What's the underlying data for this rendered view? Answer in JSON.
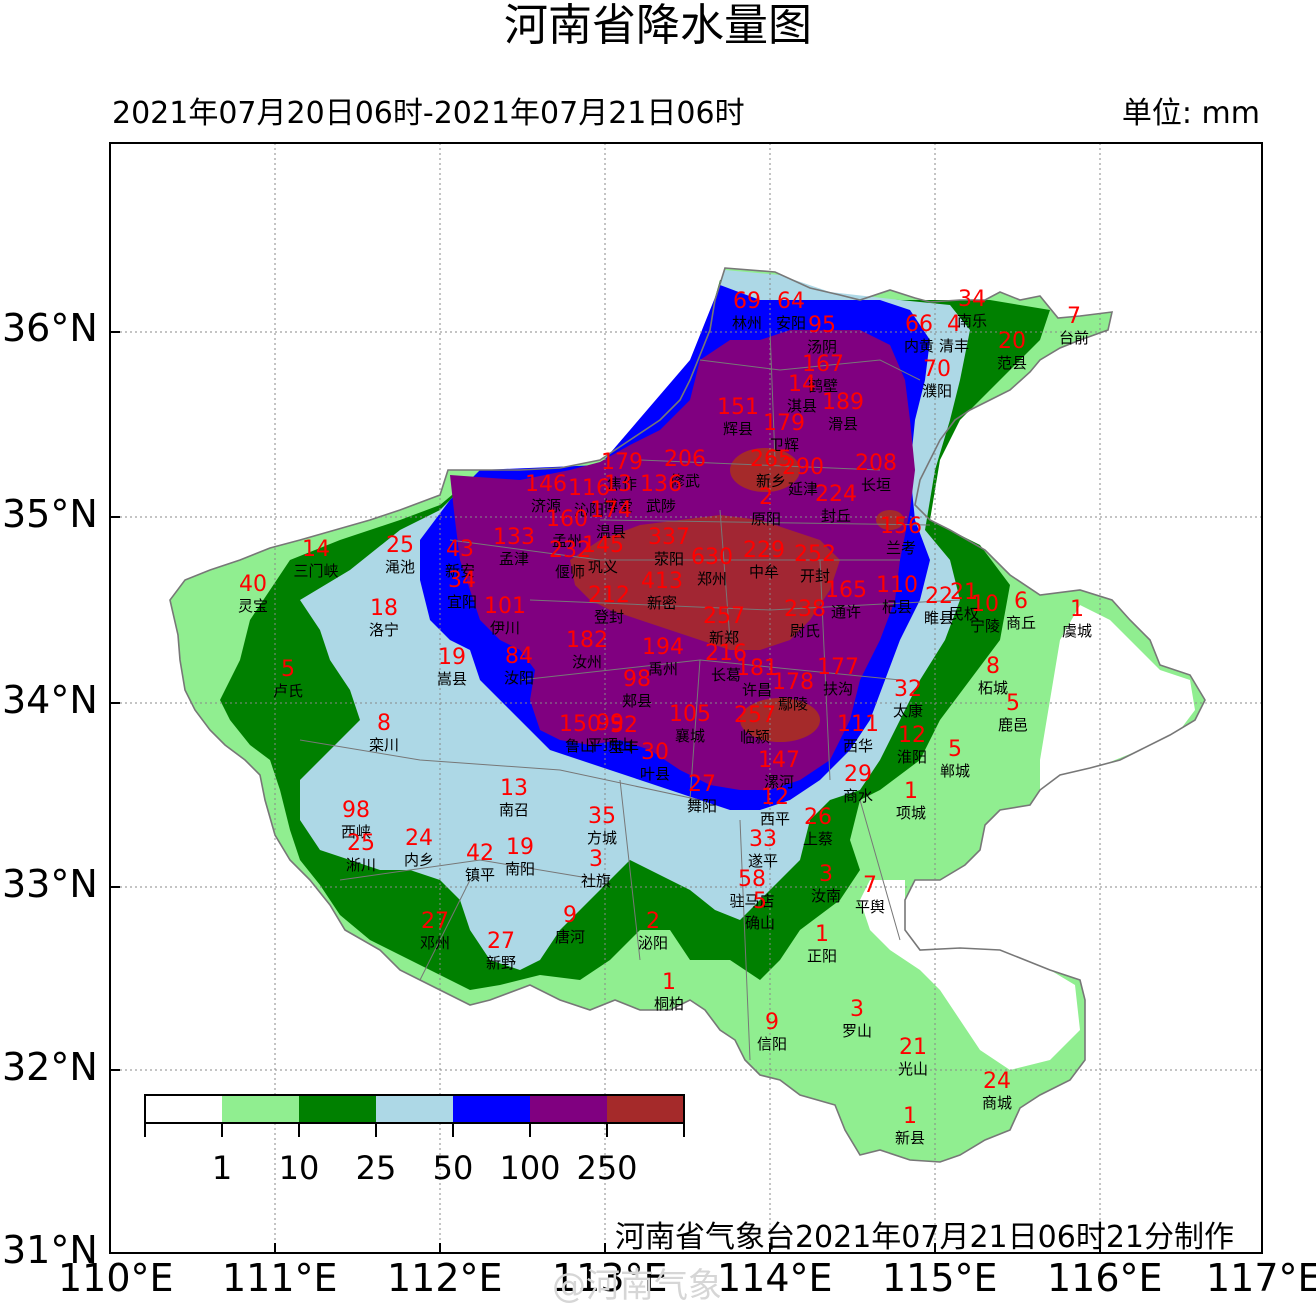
{
  "title": "河南省降水量图",
  "period": "2021年07月20日06时-2021年07月21日06时",
  "unit": "单位: mm",
  "credit": "河南省气象台2021年07月21日06时21分制作",
  "watermark": "@河南气象",
  "lat_labels": [
    "36°N",
    "35°N",
    "34°N",
    "33°N",
    "32°N",
    "31°N"
  ],
  "lon_labels": [
    "110°E",
    "111°E",
    "112°E",
    "113°E",
    "114°E",
    "115°E",
    "116°E",
    "117°E"
  ],
  "legend": {
    "colors": [
      "#ffffff",
      "#90ee90",
      "#008000",
      "#add8e6",
      "#0000ff",
      "#800080",
      "#a52a2a"
    ],
    "tick_labels": [
      "1",
      "10",
      "25",
      "50",
      "100",
      "250"
    ]
  },
  "stations": [
    {
      "name": "林州",
      "value": "69"
    },
    {
      "name": "安阳",
      "value": "64"
    },
    {
      "name": "汤阴",
      "value": "95"
    },
    {
      "name": "内黄",
      "value": "66"
    },
    {
      "name": "清丰",
      "value": "4"
    },
    {
      "name": "南乐",
      "value": "34"
    },
    {
      "name": "范县",
      "value": "20"
    },
    {
      "name": "台前",
      "value": "7"
    },
    {
      "name": "濮阳",
      "value": "70"
    },
    {
      "name": "鹤壁",
      "value": "167"
    },
    {
      "name": "淇县",
      "value": "14"
    },
    {
      "name": "滑县",
      "value": "189"
    },
    {
      "name": "辉县",
      "value": "151"
    },
    {
      "name": "卫辉",
      "value": "179"
    },
    {
      "name": "新乡",
      "value": "265"
    },
    {
      "name": "延津",
      "value": "290"
    },
    {
      "name": "长垣",
      "value": "208"
    },
    {
      "name": "焦作",
      "value": "179"
    },
    {
      "name": "修武",
      "value": "206"
    },
    {
      "name": "博爱",
      "value": "13"
    },
    {
      "name": "武陟",
      "value": "136"
    },
    {
      "name": "济源",
      "value": "146"
    },
    {
      "name": "沁阳",
      "value": "116"
    },
    {
      "name": "原阳",
      "value": "2"
    },
    {
      "name": "封丘",
      "value": "224"
    },
    {
      "name": "温县",
      "value": "174"
    },
    {
      "name": "孟州",
      "value": "160"
    },
    {
      "name": "兰考",
      "value": "156"
    },
    {
      "name": "孟津",
      "value": "133"
    },
    {
      "name": "巩义",
      "value": "145"
    },
    {
      "name": "偃师",
      "value": "232"
    },
    {
      "name": "荥阳",
      "value": "337"
    },
    {
      "name": "郑州",
      "value": "630"
    },
    {
      "name": "中牟",
      "value": "229"
    },
    {
      "name": "开封",
      "value": "252"
    },
    {
      "name": "三门峡",
      "value": "14"
    },
    {
      "name": "渑池",
      "value": "25"
    },
    {
      "name": "新安",
      "value": "43"
    },
    {
      "name": "宜阳",
      "value": "34"
    },
    {
      "name": "灵宝",
      "value": "40"
    },
    {
      "name": "洛宁",
      "value": "18"
    },
    {
      "name": "伊川",
      "value": "101"
    },
    {
      "name": "登封",
      "value": "212"
    },
    {
      "name": "新密",
      "value": "413"
    },
    {
      "name": "新郑",
      "value": "257"
    },
    {
      "name": "尉氏",
      "value": "238"
    },
    {
      "name": "通许",
      "value": "165"
    },
    {
      "name": "杞县",
      "value": "110"
    },
    {
      "name": "睢县",
      "value": "22"
    },
    {
      "name": "民权",
      "value": "21"
    },
    {
      "name": "宁陵",
      "value": "10"
    },
    {
      "name": "商丘",
      "value": "6"
    },
    {
      "name": "虞城",
      "value": "1"
    },
    {
      "name": "汝州",
      "value": "182"
    },
    {
      "name": "禹州",
      "value": "194"
    },
    {
      "name": "长葛",
      "value": "216"
    },
    {
      "name": "卢氏",
      "value": "5"
    },
    {
      "name": "嵩县",
      "value": "19"
    },
    {
      "name": "汝阳",
      "value": "84"
    },
    {
      "name": "郏县",
      "value": "98"
    },
    {
      "name": "许昌",
      "value": "181"
    },
    {
      "name": "鄢陵",
      "value": "178"
    },
    {
      "name": "扶沟",
      "value": "177"
    },
    {
      "name": "太康",
      "value": "32"
    },
    {
      "name": "柘城",
      "value": "8"
    },
    {
      "name": "鹿邑",
      "value": "5"
    },
    {
      "name": "栾川",
      "value": "8"
    },
    {
      "name": "鲁山",
      "value": "150"
    },
    {
      "name": "平顶山",
      "value": "99"
    },
    {
      "name": "宝丰",
      "value": "52"
    },
    {
      "name": "襄城",
      "value": "105"
    },
    {
      "name": "临颍",
      "value": "257"
    },
    {
      "name": "西华",
      "value": "111"
    },
    {
      "name": "淮阳",
      "value": "12"
    },
    {
      "name": "郸城",
      "value": "5"
    },
    {
      "name": "叶县",
      "value": "30"
    },
    {
      "name": "漯河",
      "value": "147"
    },
    {
      "name": "商水",
      "value": "29"
    },
    {
      "name": "项城",
      "value": "1"
    },
    {
      "name": "西峡",
      "value": "98"
    },
    {
      "name": "南召",
      "value": "13"
    },
    {
      "name": "舞阳",
      "value": "27"
    },
    {
      "name": "西平",
      "value": "12"
    },
    {
      "name": "上蔡",
      "value": "26"
    },
    {
      "name": "淅川",
      "value": "25"
    },
    {
      "name": "内乡",
      "value": "24"
    },
    {
      "name": "镇平",
      "value": "42"
    },
    {
      "name": "南阳",
      "value": "19"
    },
    {
      "name": "方城",
      "value": "35"
    },
    {
      "name": "遂平",
      "value": "33"
    },
    {
      "name": "社旗",
      "value": "3"
    },
    {
      "name": "驻马店",
      "value": "58"
    },
    {
      "name": "汝南",
      "value": "3"
    },
    {
      "name": "平舆",
      "value": "7"
    },
    {
      "name": "确山",
      "value": "5"
    },
    {
      "name": "邓州",
      "value": "27"
    },
    {
      "name": "唐河",
      "value": "9"
    },
    {
      "name": "泌阳",
      "value": "2"
    },
    {
      "name": "正阳",
      "value": "1"
    },
    {
      "name": "新野",
      "value": "27"
    },
    {
      "name": "桐柏",
      "value": "1"
    },
    {
      "name": "罗山",
      "value": "3"
    },
    {
      "name": "信阳",
      "value": "9"
    },
    {
      "name": "光山",
      "value": "21"
    },
    {
      "name": "商城",
      "value": "24"
    },
    {
      "name": "新县",
      "value": "1"
    }
  ]
}
